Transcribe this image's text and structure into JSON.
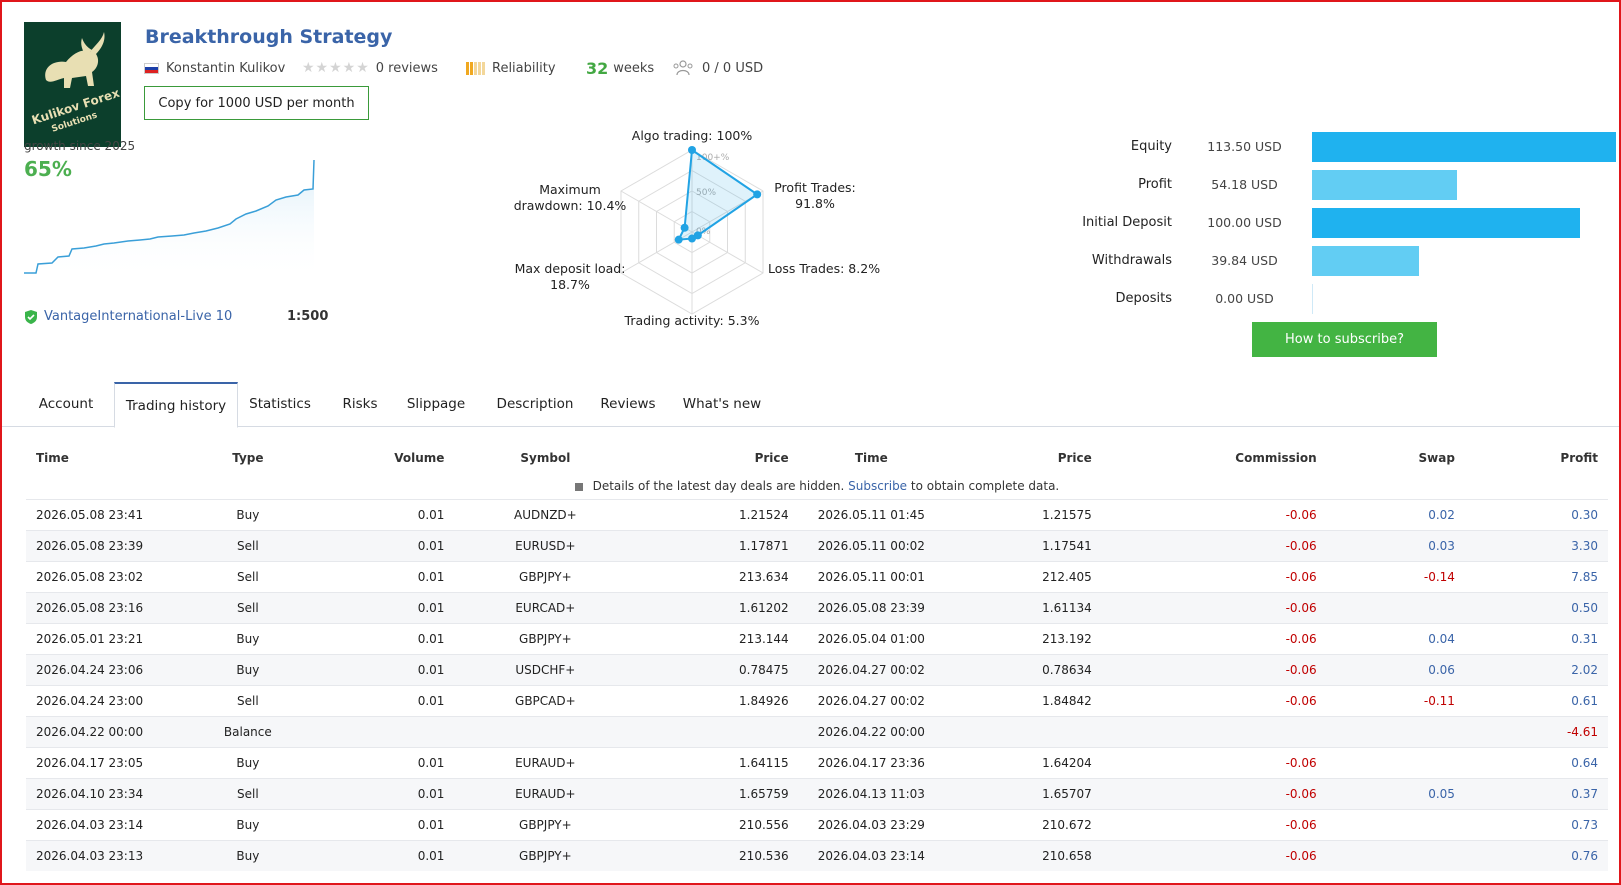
{
  "header": {
    "title": "Breakthrough Strategy",
    "logo_text_1": "Kulikov Forex",
    "logo_text_2": "Solutions",
    "author": "Konstantin Kulikov",
    "reviews": "0 reviews",
    "reliability": "Reliability",
    "weeks_num": "32",
    "weeks_label": "weeks",
    "subscribers": "0 / 0 USD",
    "copy_button": "Copy for 1000 USD per month"
  },
  "growth": {
    "label": "growth since 2025",
    "value": "65%",
    "broker": "VantageInternational-Live 10",
    "leverage": "1:500"
  },
  "radar": {
    "grid_labels": [
      "100+%",
      "50%",
      "0%"
    ],
    "axes": [
      {
        "label": "Algo trading: 100%",
        "value": 1.0
      },
      {
        "label": "Profit Trades: 91.8%",
        "value": 0.918
      },
      {
        "label": "Loss Trades: 8.2%",
        "value": 0.082
      },
      {
        "label": "Trading activity: 5.3%",
        "value": 0.053
      },
      {
        "label": "Max deposit load: 18.7%",
        "value": 0.187
      },
      {
        "label": "Maximum drawdown: 10.4%",
        "value": 0.104
      }
    ],
    "label_algo": "Algo trading: 100%",
    "label_profit_1": "Profit Trades:",
    "label_profit_2": "91.8%",
    "label_loss": "Loss Trades: 8.2%",
    "label_activity": "Trading activity: 5.3%",
    "label_load_1": "Max deposit load:",
    "label_load_2": "18.7%",
    "label_dd_1": "Maximum",
    "label_dd_2": "drawdown: 10.4%"
  },
  "metrics": [
    {
      "label": "Equity",
      "value": "113.50 USD",
      "amount": 113.5,
      "color": "#1fb2ef"
    },
    {
      "label": "Profit",
      "value": "54.18 USD",
      "amount": 54.18,
      "color": "#62cdf3"
    },
    {
      "label": "Initial Deposit",
      "value": "100.00 USD",
      "amount": 100.0,
      "color": "#1fb2ef"
    },
    {
      "label": "Withdrawals",
      "value": "39.84 USD",
      "amount": 39.84,
      "color": "#62cdf3"
    },
    {
      "label": "Deposits",
      "value": "0.00 USD",
      "amount": 0.0,
      "color": "#62cdf3"
    }
  ],
  "subscribe_button": "How to subscribe?",
  "tabs": [
    "Account",
    "Trading history",
    "Statistics",
    "Risks",
    "Slippage",
    "Description",
    "Reviews",
    "What's new"
  ],
  "table": {
    "headers": [
      "Time",
      "Type",
      "Volume",
      "Symbol",
      "Price",
      "Time",
      "Price",
      "Commission",
      "Swap",
      "Profit"
    ],
    "notice_text": "Details of the latest day deals are hidden.",
    "notice_link": "Subscribe",
    "notice_tail": "to obtain complete data.",
    "rows": [
      [
        "2026.05.08 23:41",
        "Buy",
        "0.01",
        "AUDNZD+",
        "1.21524",
        "2026.05.11 01:45",
        "1.21575",
        "-0.06",
        "0.02",
        "0.30"
      ],
      [
        "2026.05.08 23:39",
        "Sell",
        "0.01",
        "EURUSD+",
        "1.17871",
        "2026.05.11 00:02",
        "1.17541",
        "-0.06",
        "0.03",
        "3.30"
      ],
      [
        "2026.05.08 23:02",
        "Sell",
        "0.01",
        "GBPJPY+",
        "213.634",
        "2026.05.11 00:01",
        "212.405",
        "-0.06",
        "-0.14",
        "7.85"
      ],
      [
        "2026.05.08 23:16",
        "Sell",
        "0.01",
        "EURCAD+",
        "1.61202",
        "2026.05.08 23:39",
        "1.61134",
        "-0.06",
        "",
        "0.50"
      ],
      [
        "2026.05.01 23:21",
        "Buy",
        "0.01",
        "GBPJPY+",
        "213.144",
        "2026.05.04 01:00",
        "213.192",
        "-0.06",
        "0.04",
        "0.31"
      ],
      [
        "2026.04.24 23:06",
        "Buy",
        "0.01",
        "USDCHF+",
        "0.78475",
        "2026.04.27 00:02",
        "0.78634",
        "-0.06",
        "0.06",
        "2.02"
      ],
      [
        "2026.04.24 23:00",
        "Sell",
        "0.01",
        "GBPCAD+",
        "1.84926",
        "2026.04.27 00:02",
        "1.84842",
        "-0.06",
        "-0.11",
        "0.61"
      ],
      [
        "2026.04.22 00:00",
        "Balance",
        "",
        "",
        "",
        "2026.04.22 00:00",
        "",
        "",
        "",
        "-4.61"
      ],
      [
        "2026.04.17 23:05",
        "Buy",
        "0.01",
        "EURAUD+",
        "1.64115",
        "2026.04.17 23:36",
        "1.64204",
        "-0.06",
        "",
        "0.64"
      ],
      [
        "2026.04.10 23:34",
        "Sell",
        "0.01",
        "EURAUD+",
        "1.65759",
        "2026.04.13 11:03",
        "1.65707",
        "-0.06",
        "0.05",
        "0.37"
      ],
      [
        "2026.04.03 23:14",
        "Buy",
        "0.01",
        "GBPJPY+",
        "210.556",
        "2026.04.03 23:29",
        "210.672",
        "-0.06",
        "",
        "0.73"
      ],
      [
        "2026.04.03 23:13",
        "Buy",
        "0.01",
        "GBPJPY+",
        "210.536",
        "2026.04.03 23:14",
        "210.658",
        "-0.06",
        "",
        "0.76"
      ]
    ]
  }
}
